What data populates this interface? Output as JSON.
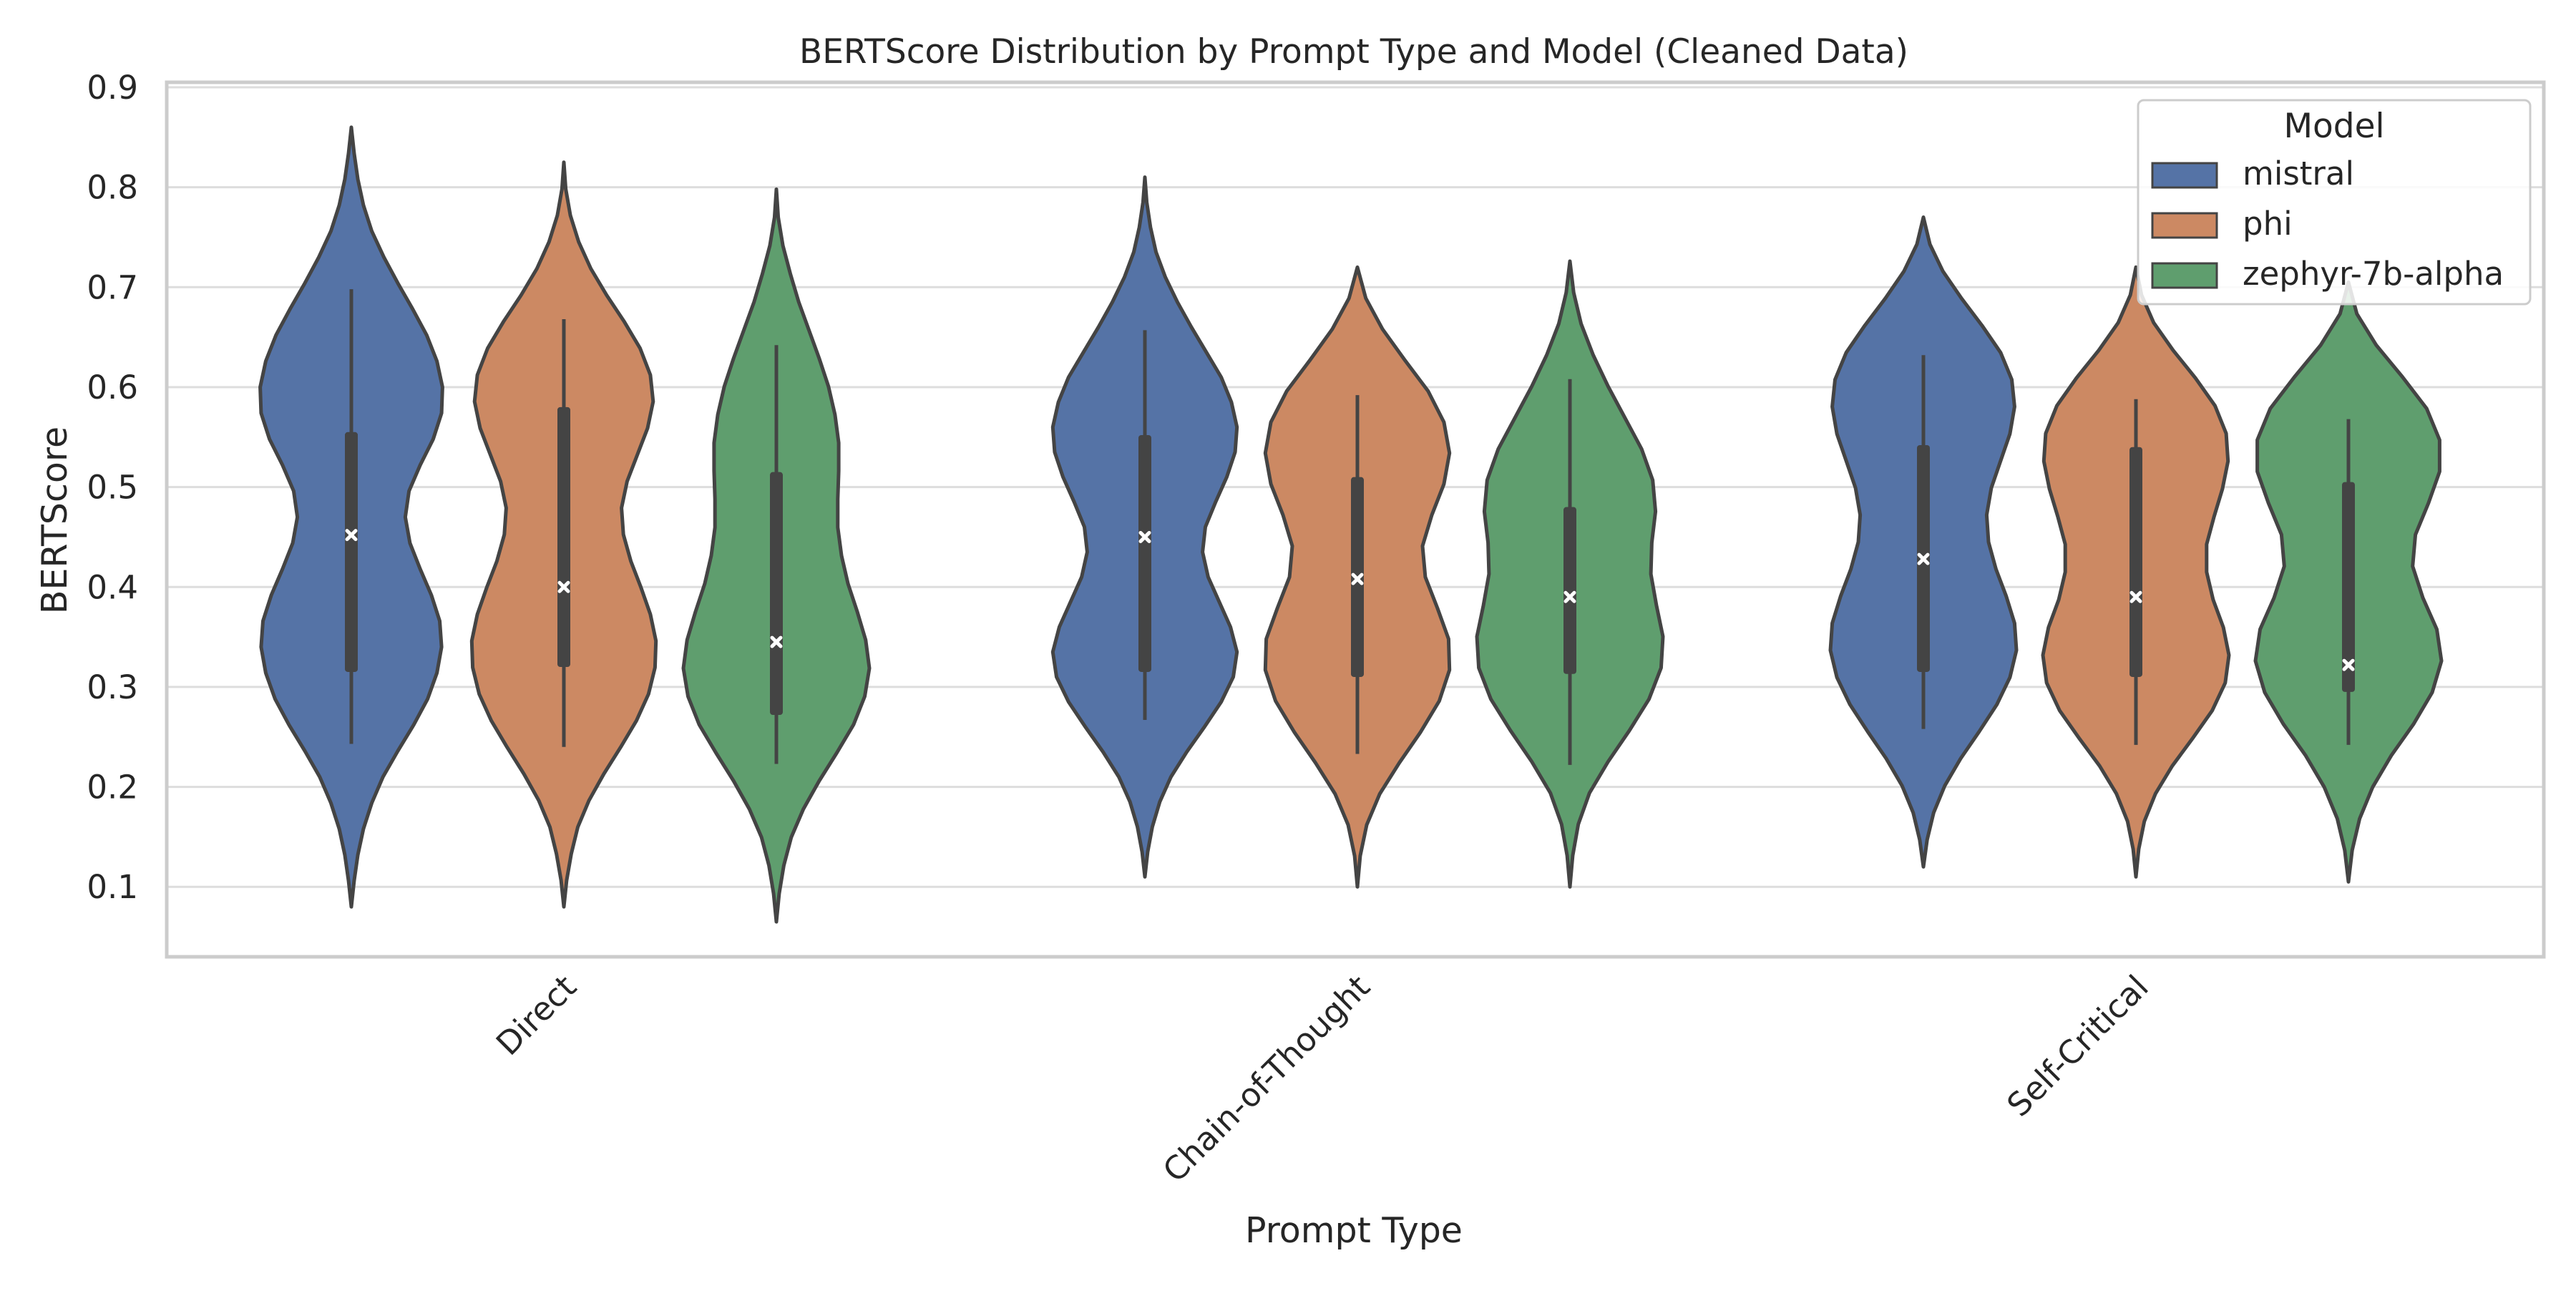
{
  "chart_data": {
    "type": "violin",
    "title": "BERTScore Distribution by Prompt Type and Model (Cleaned Data)",
    "xlabel": "Prompt Type",
    "ylabel": "BERTScore",
    "categories": [
      "Direct",
      "Chain-of-Thought",
      "Self-Critical"
    ],
    "ylim": [
      0.03,
      0.905
    ],
    "yticks": [
      0.1,
      0.2,
      0.3,
      0.4,
      0.5,
      0.6,
      0.7,
      0.8,
      0.9
    ],
    "grid": true,
    "legend": {
      "title": "Model",
      "placement": "top-right"
    },
    "series": [
      {
        "name": "mistral",
        "color": "#5573a6",
        "violins": [
          {
            "category": "Direct",
            "min": 0.08,
            "max": 0.86,
            "q1": 0.315,
            "median": 0.452,
            "q3": 0.555,
            "whisker_low": 0.243,
            "whisker_high": 0.698,
            "density": [
              0.0,
              0.03,
              0.07,
              0.13,
              0.22,
              0.34,
              0.5,
              0.67,
              0.82,
              0.92,
              0.97,
              0.95,
              0.86,
              0.74,
              0.63,
              0.58,
              0.62,
              0.74,
              0.88,
              0.97,
              0.98,
              0.92,
              0.81,
              0.66,
              0.5,
              0.35,
              0.22,
              0.13,
              0.07,
              0.03,
              0.0
            ]
          },
          {
            "category": "Chain-of-Thought",
            "min": 0.11,
            "max": 0.81,
            "q1": 0.315,
            "median": 0.45,
            "q3": 0.552,
            "whisker_low": 0.267,
            "whisker_high": 0.657,
            "density": [
              0.0,
              0.03,
              0.08,
              0.16,
              0.28,
              0.45,
              0.64,
              0.82,
              0.95,
              0.99,
              0.92,
              0.8,
              0.68,
              0.62,
              0.65,
              0.76,
              0.88,
              0.97,
              0.99,
              0.93,
              0.82,
              0.66,
              0.5,
              0.35,
              0.22,
              0.12,
              0.06,
              0.02,
              0.0
            ]
          },
          {
            "category": "Self-Critical",
            "min": 0.12,
            "max": 0.77,
            "q1": 0.315,
            "median": 0.428,
            "q3": 0.542,
            "whisker_low": 0.258,
            "whisker_high": 0.632,
            "density": [
              0.0,
              0.04,
              0.11,
              0.23,
              0.4,
              0.6,
              0.79,
              0.93,
              1.0,
              0.98,
              0.89,
              0.78,
              0.7,
              0.68,
              0.73,
              0.83,
              0.93,
              0.98,
              0.95,
              0.83,
              0.63,
              0.41,
              0.21,
              0.07,
              0.0
            ]
          }
        ]
      },
      {
        "name": "phi",
        "color": "#cc8963",
        "violins": [
          {
            "category": "Direct",
            "min": 0.08,
            "max": 0.825,
            "q1": 0.32,
            "median": 0.4,
            "q3": 0.58,
            "whisker_low": 0.24,
            "whisker_high": 0.668,
            "density": [
              0.0,
              0.03,
              0.08,
              0.15,
              0.27,
              0.43,
              0.61,
              0.78,
              0.91,
              0.98,
              0.99,
              0.93,
              0.83,
              0.72,
              0.64,
              0.62,
              0.68,
              0.79,
              0.9,
              0.96,
              0.93,
              0.82,
              0.65,
              0.46,
              0.29,
              0.16,
              0.07,
              0.02,
              0.0
            ]
          },
          {
            "category": "Chain-of-Thought",
            "min": 0.1,
            "max": 0.72,
            "q1": 0.31,
            "median": 0.408,
            "q3": 0.51,
            "whisker_low": 0.233,
            "whisker_high": 0.592,
            "density": [
              0.0,
              0.03,
              0.1,
              0.24,
              0.45,
              0.68,
              0.88,
              0.99,
              0.98,
              0.86,
              0.73,
              0.7,
              0.8,
              0.93,
              0.99,
              0.93,
              0.76,
              0.51,
              0.27,
              0.09,
              0.0
            ]
          },
          {
            "category": "Self-Critical",
            "min": 0.11,
            "max": 0.72,
            "q1": 0.31,
            "median": 0.39,
            "q3": 0.54,
            "whisker_low": 0.242,
            "whisker_high": 0.588,
            "density": [
              0.0,
              0.03,
              0.09,
              0.21,
              0.39,
              0.61,
              0.82,
              0.96,
              1.0,
              0.94,
              0.83,
              0.76,
              0.76,
              0.84,
              0.93,
              0.99,
              0.97,
              0.85,
              0.64,
              0.4,
              0.19,
              0.06,
              0.0
            ]
          }
        ]
      },
      {
        "name": "zephyr-7b-alpha",
        "color": "#5f9e6e",
        "violins": [
          {
            "category": "Direct",
            "min": 0.065,
            "max": 0.798,
            "q1": 0.272,
            "median": 0.345,
            "q3": 0.515,
            "whisker_low": 0.223,
            "whisker_high": 0.642,
            "density": [
              0.0,
              0.03,
              0.08,
              0.16,
              0.29,
              0.46,
              0.65,
              0.83,
              0.95,
              1.0,
              0.96,
              0.87,
              0.77,
              0.7,
              0.66,
              0.66,
              0.67,
              0.67,
              0.63,
              0.56,
              0.46,
              0.35,
              0.24,
              0.15,
              0.07,
              0.02,
              0.0
            ]
          },
          {
            "category": "Chain-of-Thought",
            "min": 0.1,
            "max": 0.726,
            "q1": 0.313,
            "median": 0.39,
            "q3": 0.48,
            "whisker_low": 0.222,
            "whisker_high": 0.608,
            "density": [
              0.0,
              0.03,
              0.09,
              0.21,
              0.41,
              0.64,
              0.85,
              0.98,
              1.0,
              0.93,
              0.87,
              0.88,
              0.92,
              0.89,
              0.77,
              0.59,
              0.41,
              0.25,
              0.12,
              0.04,
              0.0
            ]
          },
          {
            "category": "Self-Critical",
            "min": 0.105,
            "max": 0.705,
            "q1": 0.295,
            "median": 0.322,
            "q3": 0.505,
            "whisker_low": 0.242,
            "whisker_high": 0.568,
            "density": [
              0.0,
              0.04,
              0.12,
              0.26,
              0.46,
              0.7,
              0.9,
              1.0,
              0.95,
              0.8,
              0.69,
              0.72,
              0.86,
              0.98,
              0.98,
              0.84,
              0.58,
              0.3,
              0.09,
              0.0
            ]
          }
        ]
      }
    ]
  }
}
